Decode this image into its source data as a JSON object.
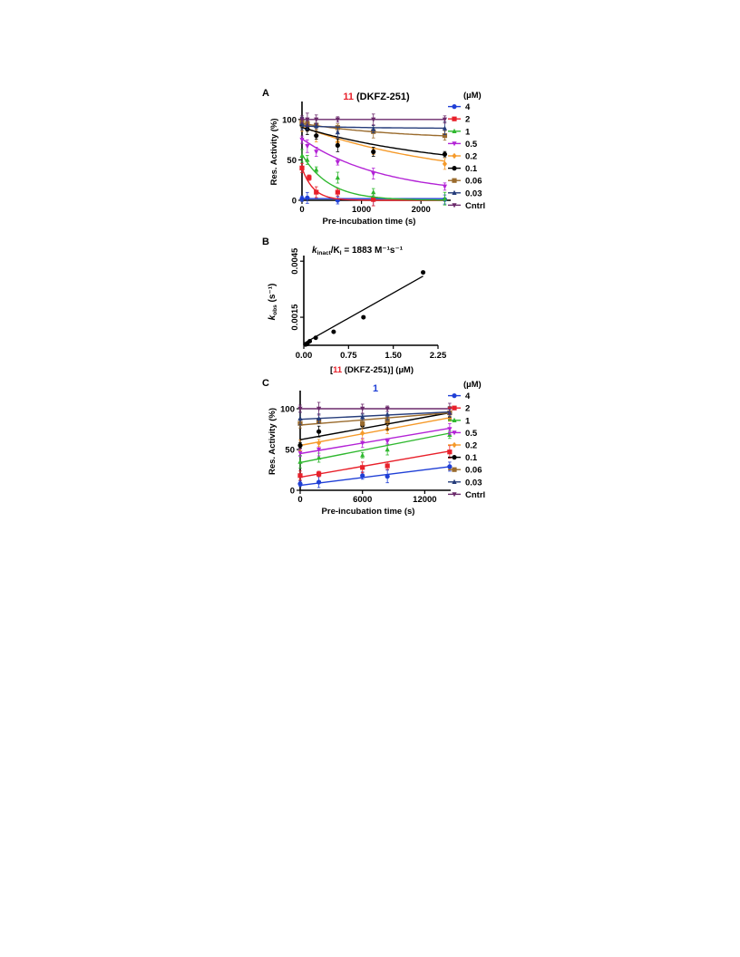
{
  "chart_data": [
    {
      "type": "scatter",
      "panel_letter": "A",
      "title_compound": "11",
      "title_rest": " (DKFZ-251)",
      "title_color": "#e8202a",
      "xlabel": "Pre-incubation time (s)",
      "ylabel": "Res. Activity (%)",
      "xlim": [
        0,
        2500
      ],
      "ylim": [
        0,
        120
      ],
      "xticks": [
        0,
        1000,
        2000
      ],
      "yticks": [
        0,
        50,
        100
      ],
      "legend_title": "(µM)",
      "legend_position": "right",
      "fit": "exponential",
      "series": [
        {
          "name": "4",
          "color": "#1f3fd6",
          "marker": "circle",
          "x": [
            0,
            90,
            600,
            1200,
            2400
          ],
          "y": [
            2,
            3,
            0,
            1,
            1
          ],
          "fit": [
            2,
            0,
            1
          ]
        },
        {
          "name": "2",
          "color": "#e8202a",
          "marker": "square",
          "x": [
            0,
            120,
            240,
            600,
            1200
          ],
          "y": [
            40,
            28,
            10,
            10,
            1
          ],
          "fit": [
            40,
            0.0052,
            0
          ]
        },
        {
          "name": "1",
          "color": "#2fb82f",
          "marker": "triangle-up",
          "x": [
            0,
            90,
            240,
            600,
            1200,
            2400
          ],
          "y": [
            55,
            50,
            38,
            28,
            10,
            2
          ],
          "fit": [
            57,
            0.0022,
            0
          ]
        },
        {
          "name": "0.5",
          "color": "#b323d6",
          "marker": "triangle-down",
          "x": [
            0,
            90,
            240,
            600,
            1200,
            2400
          ],
          "y": [
            75,
            67,
            60,
            47,
            33,
            17
          ],
          "fit": [
            76,
            0.00072,
            6
          ]
        },
        {
          "name": "0.2",
          "color": "#f59a2a",
          "marker": "diamond",
          "x": [
            0,
            90,
            240,
            600,
            1200,
            2400
          ],
          "y": [
            92,
            90,
            80,
            72,
            60,
            45
          ],
          "fit": [
            91,
            0.0004,
            22
          ]
        },
        {
          "name": "0.1",
          "color": "#000000",
          "marker": "circle",
          "x": [
            0,
            90,
            240,
            600,
            1200,
            2400
          ],
          "y": [
            93,
            88,
            80,
            68,
            60,
            57
          ],
          "fit": [
            90,
            0.0004,
            35
          ]
        },
        {
          "name": "0.06",
          "color": "#9a6b2d",
          "marker": "square",
          "x": [
            0,
            90,
            240,
            600,
            1200,
            2400
          ],
          "y": [
            97,
            95,
            93,
            90,
            85,
            80
          ],
          "fit": [
            95,
            0.0006,
            75
          ]
        },
        {
          "name": "0.03",
          "color": "#253c7a",
          "marker": "triangle-up",
          "x": [
            0,
            90,
            240,
            600,
            1200,
            2400
          ],
          "y": [
            95,
            93,
            92,
            84,
            88,
            89
          ],
          "fit": [
            92,
            0.001,
            89
          ]
        },
        {
          "name": "Cntrl",
          "color": "#6b2a6b",
          "marker": "triangle-down",
          "x": [
            0,
            90,
            240,
            600,
            1200,
            2400
          ],
          "y": [
            100,
            100,
            100,
            100,
            100,
            100
          ],
          "fit": [
            100,
            0,
            100
          ]
        }
      ]
    },
    {
      "type": "scatter",
      "panel_letter": "B",
      "annotation_k": "k",
      "annotation_sub1": "inact",
      "annotation_mid": "/K",
      "annotation_sub2": "I",
      "annotation_rest": " = 1883 M⁻¹s⁻¹",
      "xlabel_pre": "[",
      "xlabel_compound": "11",
      "xlabel_post": " (DKFZ-251)] (µM)",
      "xlabel_compound_color": "#e8202a",
      "ylabel_k": "k",
      "ylabel_sub": "obs",
      "ylabel_unit": " (s⁻¹)",
      "xlim": [
        0,
        2.25
      ],
      "ylim": [
        0,
        0.0048
      ],
      "xticks": [
        "0.00",
        "0.75",
        "1.50",
        "2.25"
      ],
      "yticks": [
        "0.0015",
        "0.0045"
      ],
      "points": {
        "x": [
          0.03,
          0.06,
          0.1,
          0.2,
          0.5,
          1.0,
          2.0
        ],
        "y": [
          4e-05,
          7e-05,
          0.00022,
          0.0004,
          0.00072,
          0.0015,
          0.0039
        ]
      },
      "fit_line": {
        "x": [
          0,
          2.0
        ],
        "y": [
          0.0001,
          0.0037
        ]
      },
      "color": "#000000"
    },
    {
      "type": "scatter",
      "panel_letter": "C",
      "title": "1",
      "title_color": "#1f3fd6",
      "xlabel": "Pre-incubation time (s)",
      "ylabel": "Res. Activity (%)",
      "xlim": [
        0,
        14500
      ],
      "ylim": [
        0,
        120
      ],
      "xticks": [
        0,
        6000,
        12000
      ],
      "yticks": [
        0,
        50,
        100
      ],
      "legend_title": "(µM)",
      "legend_position": "right",
      "fit": "linear",
      "series": [
        {
          "name": "4",
          "color": "#1f3fd6",
          "marker": "circle",
          "x": [
            0,
            1800,
            6000,
            8400,
            14400
          ],
          "y": [
            8,
            10,
            18,
            17,
            29
          ],
          "fit": [
            6,
            29
          ]
        },
        {
          "name": "2",
          "color": "#e8202a",
          "marker": "square",
          "x": [
            0,
            1800,
            6000,
            8400,
            14400
          ],
          "y": [
            18,
            20,
            28,
            30,
            47
          ],
          "fit": [
            16,
            48
          ]
        },
        {
          "name": "1",
          "color": "#2fb82f",
          "marker": "triangle-up",
          "x": [
            0,
            1800,
            6000,
            8400,
            14400
          ],
          "y": [
            35,
            40,
            43,
            50,
            68
          ],
          "fit": [
            34,
            70
          ]
        },
        {
          "name": "0.5",
          "color": "#b323d6",
          "marker": "triangle-down",
          "x": [
            0,
            1800,
            6000,
            8400,
            14400
          ],
          "y": [
            46,
            50,
            58,
            60,
            75
          ],
          "fit": [
            45,
            76
          ]
        },
        {
          "name": "0.2",
          "color": "#f59a2a",
          "marker": "diamond",
          "x": [
            0,
            1800,
            6000,
            8400,
            14400
          ],
          "y": [
            55,
            58,
            70,
            75,
            88
          ],
          "fit": [
            55,
            89
          ]
        },
        {
          "name": "0.1",
          "color": "#000000",
          "marker": "circle",
          "x": [
            0,
            1800,
            6000,
            8400,
            14400
          ],
          "y": [
            55,
            72,
            80,
            82,
            95
          ],
          "fit": [
            62,
            95
          ]
        },
        {
          "name": "0.06",
          "color": "#9a6b2d",
          "marker": "square",
          "x": [
            0,
            1800,
            6000,
            8400,
            14400
          ],
          "y": [
            82,
            85,
            82,
            85,
            95
          ],
          "fit": [
            80,
            95
          ]
        },
        {
          "name": "0.03",
          "color": "#253c7a",
          "marker": "triangle-up",
          "x": [
            0,
            1800,
            6000,
            8400,
            14400
          ],
          "y": [
            88,
            88,
            90,
            93,
            95
          ],
          "fit": [
            87,
            96
          ]
        },
        {
          "name": "Cntrl",
          "color": "#6b2a6b",
          "marker": "triangle-down",
          "x": [
            0,
            1800,
            6000,
            8400,
            14400
          ],
          "y": [
            100,
            100,
            100,
            100,
            100
          ],
          "fit": [
            100,
            100
          ]
        }
      ]
    }
  ]
}
